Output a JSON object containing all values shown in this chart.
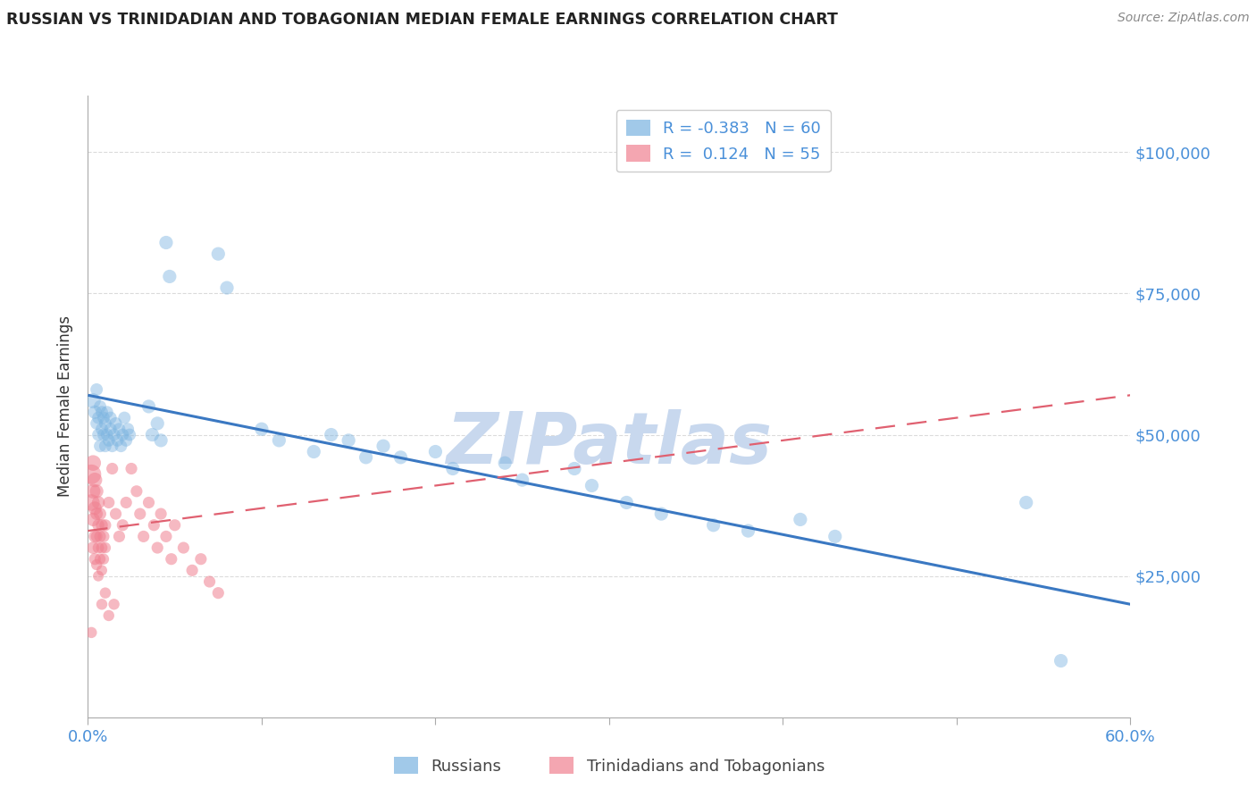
{
  "title": "RUSSIAN VS TRINIDADIAN AND TOBAGONIAN MEDIAN FEMALE EARNINGS CORRELATION CHART",
  "source_text": "Source: ZipAtlas.com",
  "ylabel": "Median Female Earnings",
  "xlim": [
    0.0,
    0.6
  ],
  "ylim": [
    0,
    110000
  ],
  "yticks": [
    25000,
    50000,
    75000,
    100000
  ],
  "ytick_labels": [
    "$25,000",
    "$50,000",
    "$75,000",
    "$100,000"
  ],
  "xtick_positions": [
    0.0,
    0.1,
    0.2,
    0.3,
    0.4,
    0.5,
    0.6
  ],
  "xtick_labels": [
    "0.0%",
    "",
    "",
    "",
    "",
    "",
    "60.0%"
  ],
  "blue_scatter_color": "#7ab3e0",
  "pink_scatter_color": "#f08090",
  "blue_line_color": "#3a78c2",
  "pink_line_color": "#e06070",
  "tick_label_color": "#4a90d9",
  "watermark": "ZIPatlas",
  "watermark_color": "#c8d8ee",
  "background_color": "#ffffff",
  "grid_color": "#cccccc",
  "legend_blue_R": "-0.383",
  "legend_blue_N": "60",
  "legend_pink_R": " 0.124",
  "legend_pink_N": "55",
  "legend_label_russian": "Russians",
  "legend_label_trini": "Trinidadians and Tobagonians",
  "russian_dots": [
    [
      0.003,
      56000
    ],
    [
      0.004,
      54000
    ],
    [
      0.005,
      52000
    ],
    [
      0.005,
      58000
    ],
    [
      0.006,
      50000
    ],
    [
      0.006,
      53000
    ],
    [
      0.007,
      55000
    ],
    [
      0.007,
      48000
    ],
    [
      0.008,
      51000
    ],
    [
      0.008,
      54000
    ],
    [
      0.009,
      50000
    ],
    [
      0.009,
      53000
    ],
    [
      0.01,
      48000
    ],
    [
      0.01,
      52000
    ],
    [
      0.011,
      50000
    ],
    [
      0.011,
      54000
    ],
    [
      0.012,
      49000
    ],
    [
      0.013,
      51000
    ],
    [
      0.013,
      53000
    ],
    [
      0.014,
      48000
    ],
    [
      0.015,
      50000
    ],
    [
      0.016,
      52000
    ],
    [
      0.017,
      49000
    ],
    [
      0.018,
      51000
    ],
    [
      0.019,
      48000
    ],
    [
      0.02,
      50000
    ],
    [
      0.021,
      53000
    ],
    [
      0.022,
      49000
    ],
    [
      0.023,
      51000
    ],
    [
      0.024,
      50000
    ],
    [
      0.035,
      55000
    ],
    [
      0.037,
      50000
    ],
    [
      0.04,
      52000
    ],
    [
      0.042,
      49000
    ],
    [
      0.045,
      84000
    ],
    [
      0.047,
      78000
    ],
    [
      0.075,
      82000
    ],
    [
      0.08,
      76000
    ],
    [
      0.1,
      51000
    ],
    [
      0.11,
      49000
    ],
    [
      0.13,
      47000
    ],
    [
      0.14,
      50000
    ],
    [
      0.15,
      49000
    ],
    [
      0.16,
      46000
    ],
    [
      0.17,
      48000
    ],
    [
      0.18,
      46000
    ],
    [
      0.2,
      47000
    ],
    [
      0.21,
      44000
    ],
    [
      0.24,
      45000
    ],
    [
      0.25,
      42000
    ],
    [
      0.28,
      44000
    ],
    [
      0.29,
      41000
    ],
    [
      0.31,
      38000
    ],
    [
      0.33,
      36000
    ],
    [
      0.36,
      34000
    ],
    [
      0.38,
      33000
    ],
    [
      0.41,
      35000
    ],
    [
      0.43,
      32000
    ],
    [
      0.54,
      38000
    ],
    [
      0.56,
      10000
    ]
  ],
  "russian_sizes": [
    150,
    120,
    100,
    100,
    100,
    100,
    100,
    100,
    100,
    100,
    100,
    100,
    100,
    100,
    100,
    100,
    100,
    100,
    100,
    100,
    100,
    100,
    100,
    100,
    100,
    100,
    100,
    100,
    100,
    100,
    120,
    120,
    120,
    120,
    120,
    120,
    120,
    120,
    120,
    120,
    120,
    120,
    120,
    120,
    120,
    120,
    120,
    120,
    120,
    120,
    120,
    120,
    120,
    120,
    120,
    120,
    120,
    120,
    120,
    120
  ],
  "trinidadian_dots": [
    [
      0.002,
      43000
    ],
    [
      0.002,
      38000
    ],
    [
      0.003,
      45000
    ],
    [
      0.003,
      40000
    ],
    [
      0.003,
      35000
    ],
    [
      0.003,
      30000
    ],
    [
      0.004,
      42000
    ],
    [
      0.004,
      37000
    ],
    [
      0.004,
      32000
    ],
    [
      0.004,
      28000
    ],
    [
      0.005,
      40000
    ],
    [
      0.005,
      36000
    ],
    [
      0.005,
      32000
    ],
    [
      0.005,
      27000
    ],
    [
      0.006,
      38000
    ],
    [
      0.006,
      34000
    ],
    [
      0.006,
      30000
    ],
    [
      0.006,
      25000
    ],
    [
      0.007,
      36000
    ],
    [
      0.007,
      32000
    ],
    [
      0.007,
      28000
    ],
    [
      0.008,
      34000
    ],
    [
      0.008,
      30000
    ],
    [
      0.008,
      26000
    ],
    [
      0.009,
      32000
    ],
    [
      0.009,
      28000
    ],
    [
      0.01,
      34000
    ],
    [
      0.01,
      30000
    ],
    [
      0.012,
      38000
    ],
    [
      0.014,
      44000
    ],
    [
      0.016,
      36000
    ],
    [
      0.018,
      32000
    ],
    [
      0.02,
      34000
    ],
    [
      0.022,
      38000
    ],
    [
      0.025,
      44000
    ],
    [
      0.028,
      40000
    ],
    [
      0.03,
      36000
    ],
    [
      0.032,
      32000
    ],
    [
      0.035,
      38000
    ],
    [
      0.038,
      34000
    ],
    [
      0.04,
      30000
    ],
    [
      0.042,
      36000
    ],
    [
      0.045,
      32000
    ],
    [
      0.048,
      28000
    ],
    [
      0.05,
      34000
    ],
    [
      0.055,
      30000
    ],
    [
      0.06,
      26000
    ],
    [
      0.065,
      28000
    ],
    [
      0.07,
      24000
    ],
    [
      0.075,
      22000
    ],
    [
      0.008,
      20000
    ],
    [
      0.01,
      22000
    ],
    [
      0.012,
      18000
    ],
    [
      0.015,
      20000
    ],
    [
      0.002,
      15000
    ]
  ],
  "trinidadian_sizes": [
    250,
    180,
    160,
    140,
    120,
    100,
    140,
    120,
    100,
    90,
    120,
    100,
    90,
    80,
    110,
    95,
    85,
    75,
    100,
    90,
    80,
    95,
    85,
    75,
    90,
    80,
    90,
    80,
    90,
    90,
    90,
    90,
    90,
    90,
    90,
    90,
    90,
    90,
    90,
    90,
    90,
    90,
    90,
    90,
    90,
    90,
    90,
    90,
    90,
    90,
    80,
    80,
    80,
    80,
    80
  ],
  "russian_line": [
    [
      0.0,
      57000
    ],
    [
      0.6,
      20000
    ]
  ],
  "trinidadian_line": [
    [
      0.0,
      33000
    ],
    [
      0.6,
      57000
    ]
  ]
}
